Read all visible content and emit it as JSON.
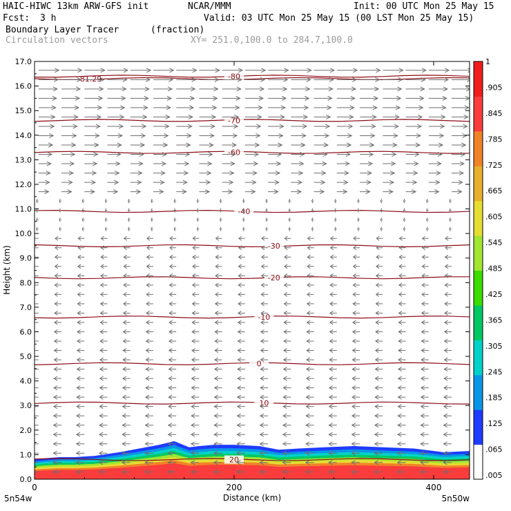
{
  "header": {
    "model": "HAIC-HIWC 13km ARW-GFS init",
    "org": "NCAR/MMM",
    "init": "Init: 00 UTC Mon 25 May 15",
    "fcst_label": "Fcst:",
    "fcst_value": "3 h",
    "valid": "Valid: 03 UTC Mon 25 May 15 (00 LST Mon 25 May 15)",
    "field": "Boundary Layer Tracer",
    "field_units": "(fraction)",
    "vectors": "Circulation vectors",
    "xy": "XY= 251.0,100.0 to 284.7,100.0"
  },
  "chart_data": {
    "type": "heatmap",
    "xlabel": "Distance (km)",
    "ylabel": "Height (km)",
    "xlim": [
      0,
      436
    ],
    "ylim": [
      0,
      17
    ],
    "x_ticks": [
      0,
      200,
      400
    ],
    "x_tick_labels": [
      "0",
      "200",
      "400"
    ],
    "y_ticks": [
      0,
      1,
      2,
      3,
      4,
      5,
      6,
      7,
      8,
      9,
      10,
      11,
      12,
      13,
      14,
      15,
      16,
      17
    ],
    "y_tick_labels": [
      "0.0",
      "1.0",
      "2.0",
      "3.0",
      "4.0",
      "5.0",
      "6.0",
      "7.0",
      "8.0",
      "9.0",
      "10.0",
      "11.0",
      "12.0",
      "13.0",
      "14.0",
      "15.0",
      "16.0",
      "17.0"
    ],
    "corner_labels": {
      "left": "5n54w",
      "right": "5n50w"
    },
    "colorbar": {
      "ticks": [
        ".005",
        ".065",
        ".125",
        ".185",
        ".245",
        ".305",
        ".365",
        ".425",
        ".485",
        ".545",
        ".605",
        ".665",
        ".725",
        ".785",
        ".845",
        ".905",
        "1"
      ],
      "colors": [
        "#ffffff",
        "#1e3cff",
        "#0a96e6",
        "#00d2c8",
        "#00c864",
        "#3cdc00",
        "#a0e632",
        "#e6dc32",
        "#e6af2d",
        "#f08228",
        "#fa3c3c",
        "#f01e1e"
      ]
    },
    "tracer_top_profile": {
      "x": [
        0,
        10,
        25,
        40,
        60,
        85,
        105,
        125,
        140,
        155,
        165,
        180,
        200,
        225,
        245,
        265,
        290,
        320,
        350,
        380,
        410,
        436
      ],
      "y": [
        0.8,
        0.85,
        0.9,
        0.9,
        0.95,
        1.1,
        1.25,
        1.4,
        1.55,
        1.3,
        1.35,
        1.4,
        1.4,
        1.35,
        1.2,
        1.25,
        1.3,
        1.35,
        1.3,
        1.25,
        1.1,
        1.15
      ]
    },
    "contours": [
      {
        "label": "-81.29",
        "y": 16.3,
        "label_x": 55
      },
      {
        "label": "-80",
        "y": 16.4,
        "label_x": 200
      },
      {
        "label": "-70",
        "y": 14.6,
        "label_x": 200
      },
      {
        "label": "-60",
        "y": 13.3,
        "label_x": 200
      },
      {
        "label": "-40",
        "y": 10.9,
        "label_x": 210
      },
      {
        "label": "-30",
        "y": 9.5,
        "label_x": 240
      },
      {
        "label": "-20",
        "y": 8.2,
        "label_x": 240
      },
      {
        "label": "-10",
        "y": 6.6,
        "label_x": 230
      },
      {
        "label": "0",
        "y": 4.7,
        "label_x": 225
      },
      {
        "label": "10",
        "y": 3.1,
        "label_x": 230
      },
      {
        "label": "20",
        "y": 0.8,
        "label_x": 200
      }
    ],
    "vectors": {
      "upper_easterly_top_km": 17,
      "upper_easterly_bottom_km": 11.5,
      "calm_layer_top_km": 11.5,
      "calm_layer_bottom_km": 10,
      "lower_westerly_top_km": 10,
      "lower_westerly_bottom_km": 0
    }
  }
}
